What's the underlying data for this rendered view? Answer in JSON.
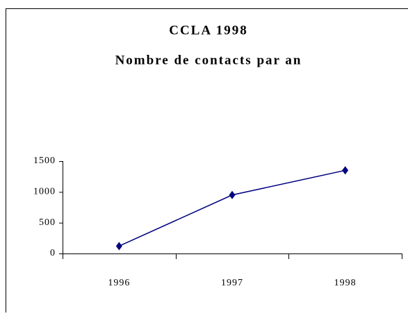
{
  "chart_data": {
    "type": "line",
    "title": "CCLA 1998",
    "subtitle": "Nombre de contacts par an",
    "categories": [
      "1996",
      "1997",
      "1998"
    ],
    "series": [
      {
        "name": null,
        "color": "#000080",
        "values": [
          120,
          950,
          1350
        ]
      }
    ],
    "ylim": [
      0,
      1500
    ],
    "yticks": [
      0,
      500,
      1000,
      1500
    ],
    "grid": false
  }
}
